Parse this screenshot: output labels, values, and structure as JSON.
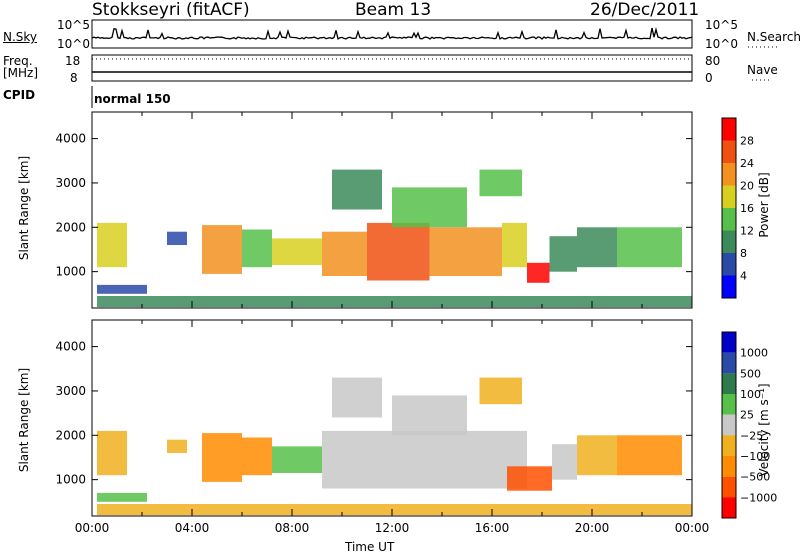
{
  "header": {
    "station": "Stokkseyri (fitACF)",
    "beam": "Beam 13",
    "date": "26/Dec/2011"
  },
  "panels": {
    "nsky": {
      "label": "N.Sky",
      "right_label": "N.Search",
      "top": "10^5",
      "bottom": "10^0",
      "right_top": "10^5",
      "right_bottom": "10^0"
    },
    "freq": {
      "label_line1": "Freq.",
      "label_line2": "[MHz]",
      "top": "18",
      "bottom": "8",
      "right_label": "Nave",
      "right_top": "80",
      "right_bottom": "0"
    },
    "cpid": {
      "label": "CPID",
      "mode": "normal 150"
    }
  },
  "colors": {
    "power": [
      "#0000ff",
      "#2a4aa8",
      "#3c8a5a",
      "#56c04a",
      "#d8d020",
      "#f29020",
      "#f05010",
      "#ff0000"
    ],
    "velocity": [
      "#ff0000",
      "#ff5000",
      "#ff8c00",
      "#f0b020",
      "#c8c8c8",
      "#56c04a",
      "#2e7a4e",
      "#2a4aa8",
      "#0000c8"
    ]
  },
  "chart_data": [
    {
      "type": "heatmap",
      "name": "power",
      "xlabel": "",
      "ylabel": "Slant Range [km]",
      "xlim": [
        "00:00",
        "00:00"
      ],
      "ylim": [
        180,
        4600
      ],
      "yticks": [
        "1000",
        "2000",
        "3000",
        "4000"
      ],
      "colorbar_label": "Power [dB]",
      "colorbar_ticks": [
        "4",
        "8",
        "12",
        "16",
        "20",
        "24",
        "28"
      ],
      "colorbar_range": [
        0,
        32
      ],
      "regions": [
        {
          "t0": 0.2,
          "t1": 1.4,
          "r0": 1100,
          "r1": 2100,
          "level": 4
        },
        {
          "t0": 3.0,
          "t1": 3.8,
          "r0": 1600,
          "r1": 1900,
          "level": 1
        },
        {
          "t0": 4.4,
          "t1": 6.0,
          "r0": 950,
          "r1": 2050,
          "level": 5
        },
        {
          "t0": 6.0,
          "t1": 7.2,
          "r0": 1100,
          "r1": 1950,
          "level": 3
        },
        {
          "t0": 7.2,
          "t1": 9.2,
          "r0": 1150,
          "r1": 1750,
          "level": 4
        },
        {
          "t0": 9.2,
          "t1": 11.0,
          "r0": 900,
          "r1": 1900,
          "level": 5
        },
        {
          "t0": 9.6,
          "t1": 11.6,
          "r0": 2400,
          "r1": 3300,
          "level": 2
        },
        {
          "t0": 11.0,
          "t1": 13.5,
          "r0": 800,
          "r1": 2100,
          "level": 6
        },
        {
          "t0": 12.0,
          "t1": 15.0,
          "r0": 2000,
          "r1": 2900,
          "level": 3
        },
        {
          "t0": 13.5,
          "t1": 16.4,
          "r0": 900,
          "r1": 2000,
          "level": 5
        },
        {
          "t0": 15.5,
          "t1": 17.2,
          "r0": 2700,
          "r1": 3300,
          "level": 3
        },
        {
          "t0": 16.4,
          "t1": 17.4,
          "r0": 1100,
          "r1": 2100,
          "level": 4
        },
        {
          "t0": 17.4,
          "t1": 18.3,
          "r0": 750,
          "r1": 1200,
          "level": 7
        },
        {
          "t0": 18.3,
          "t1": 19.4,
          "r0": 1000,
          "r1": 1800,
          "level": 2
        },
        {
          "t0": 19.4,
          "t1": 21.0,
          "r0": 1100,
          "r1": 2000,
          "level": 2
        },
        {
          "t0": 21.0,
          "t1": 23.6,
          "r0": 1100,
          "r1": 2000,
          "level": 3
        },
        {
          "t0": 0.2,
          "t1": 2.2,
          "r0": 500,
          "r1": 700,
          "level": 1
        },
        {
          "t0": 0.2,
          "t1": 24.0,
          "r0": 200,
          "r1": 450,
          "level": 2
        }
      ]
    },
    {
      "type": "heatmap",
      "name": "velocity",
      "xlabel": "Time UT",
      "ylabel": "Slant Range [km]",
      "xticks": [
        "00:00",
        "04:00",
        "08:00",
        "12:00",
        "16:00",
        "20:00",
        "00:00"
      ],
      "ylim": [
        180,
        4600
      ],
      "yticks": [
        "1000",
        "2000",
        "3000",
        "4000"
      ],
      "colorbar_label": "Velocity [m s⁻¹]",
      "colorbar_ticks": [
        "1000",
        "500",
        "100",
        "25",
        "−25",
        "−100",
        "−500",
        "−1000"
      ],
      "regions": [
        {
          "t0": 0.2,
          "t1": 1.4,
          "r0": 1100,
          "r1": 2100,
          "level": 3
        },
        {
          "t0": 3.0,
          "t1": 3.8,
          "r0": 1600,
          "r1": 1900,
          "level": 3
        },
        {
          "t0": 4.4,
          "t1": 6.0,
          "r0": 950,
          "r1": 2050,
          "level": 2
        },
        {
          "t0": 6.0,
          "t1": 7.2,
          "r0": 1100,
          "r1": 1950,
          "level": 2
        },
        {
          "t0": 7.2,
          "t1": 9.2,
          "r0": 1150,
          "r1": 1750,
          "level": 5
        },
        {
          "t0": 9.2,
          "t1": 17.4,
          "r0": 800,
          "r1": 2100,
          "level": 4
        },
        {
          "t0": 9.6,
          "t1": 11.6,
          "r0": 2400,
          "r1": 3300,
          "level": 4
        },
        {
          "t0": 12.0,
          "t1": 15.0,
          "r0": 2000,
          "r1": 2900,
          "level": 4
        },
        {
          "t0": 15.5,
          "t1": 17.2,
          "r0": 2700,
          "r1": 3300,
          "level": 3
        },
        {
          "t0": 16.6,
          "t1": 18.4,
          "r0": 750,
          "r1": 1300,
          "level": 1
        },
        {
          "t0": 18.4,
          "t1": 19.4,
          "r0": 1000,
          "r1": 1800,
          "level": 4
        },
        {
          "t0": 19.4,
          "t1": 21.0,
          "r0": 1100,
          "r1": 2000,
          "level": 3
        },
        {
          "t0": 21.0,
          "t1": 23.6,
          "r0": 1100,
          "r1": 2000,
          "level": 2
        },
        {
          "t0": 0.2,
          "t1": 2.2,
          "r0": 500,
          "r1": 700,
          "level": 5
        },
        {
          "t0": 0.2,
          "t1": 24.0,
          "r0": 200,
          "r1": 450,
          "level": 3
        }
      ]
    }
  ]
}
